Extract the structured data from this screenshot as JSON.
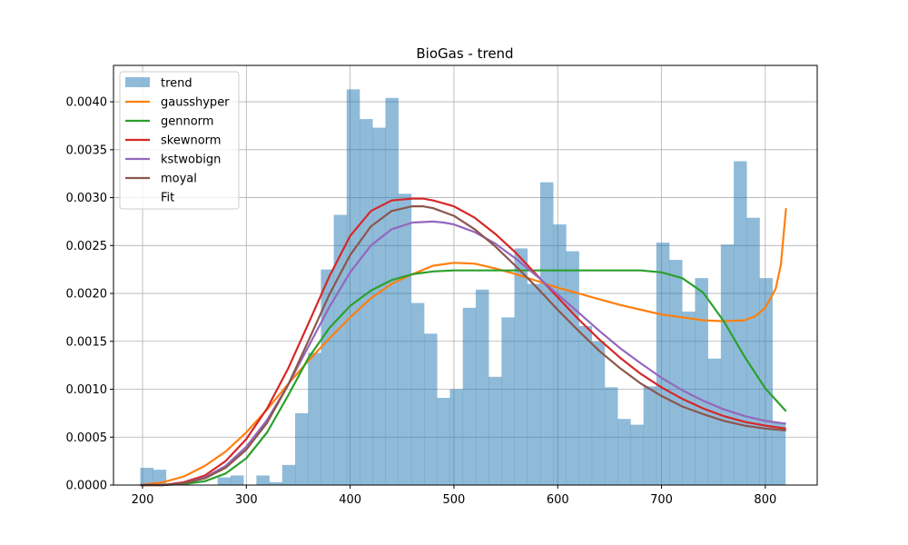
{
  "chart_data": {
    "type": "histogram",
    "title": "BioGas - trend",
    "xlabel": "",
    "ylabel": "",
    "xlim": [
      172,
      850
    ],
    "ylim": [
      0,
      0.00438
    ],
    "grid": true,
    "legend_placement": "top-left",
    "x_ticks": [
      200,
      300,
      400,
      500,
      600,
      700,
      800
    ],
    "y_ticks": [
      0.0,
      0.0005,
      0.001,
      0.0015,
      0.002,
      0.0025,
      0.003,
      0.0035,
      0.004
    ],
    "y_tick_labels": [
      "0.0000",
      "0.0005",
      "0.0010",
      "0.0015",
      "0.0020",
      "0.0025",
      "0.0030",
      "0.0035",
      "0.0040"
    ],
    "x_tick_labels": [
      "200",
      "300",
      "400",
      "500",
      "600",
      "700",
      "800"
    ],
    "histogram": {
      "name": "trend",
      "color": "#1f77b4",
      "alpha": 0.5,
      "bin_start": 197.8,
      "bin_width": 12.43,
      "values": [
        0.00018,
        0.00016,
        0.0,
        0.0,
        0.0,
        0.0,
        8e-05,
        0.0001,
        0.0,
        0.0001,
        3e-05,
        0.00021,
        0.00075,
        0.00138,
        0.00225,
        0.00282,
        0.00413,
        0.00382,
        0.00373,
        0.00404,
        0.00304,
        0.0019,
        0.00158,
        0.00091,
        0.001,
        0.00185,
        0.00204,
        0.00113,
        0.00175,
        0.00247,
        0.0021,
        0.00316,
        0.00272,
        0.00244,
        0.00166,
        0.0015,
        0.00102,
        0.00069,
        0.00063,
        0.00103,
        0.00253,
        0.00235,
        0.00181,
        0.00216,
        0.00132,
        0.00251,
        0.00338,
        0.00279,
        0.00216,
        0.00065
      ]
    },
    "series": [
      {
        "name": "gausshyper",
        "color": "#ff7f0e",
        "x": [
          198,
          220,
          240,
          260,
          280,
          300,
          320,
          340,
          360,
          380,
          400,
          420,
          440,
          460,
          480,
          500,
          520,
          540,
          560,
          580,
          600,
          620,
          640,
          660,
          680,
          700,
          720,
          740,
          760,
          780,
          790,
          800,
          810,
          815,
          820
        ],
        "y": [
          0.0,
          3e-05,
          9e-05,
          0.0002,
          0.00035,
          0.00055,
          0.00079,
          0.00105,
          0.0013,
          0.00153,
          0.00175,
          0.00195,
          0.0021,
          0.0022,
          0.00229,
          0.00232,
          0.00231,
          0.00226,
          0.0022,
          0.00213,
          0.00206,
          0.002,
          0.00194,
          0.00188,
          0.00183,
          0.00178,
          0.00175,
          0.00172,
          0.00171,
          0.00172,
          0.00176,
          0.00185,
          0.00205,
          0.0023,
          0.00289
        ]
      },
      {
        "name": "gennorm",
        "color": "#2ca02c",
        "x": [
          198,
          220,
          240,
          260,
          280,
          300,
          320,
          340,
          360,
          380,
          400,
          420,
          440,
          460,
          480,
          500,
          520,
          540,
          560,
          580,
          600,
          620,
          640,
          660,
          680,
          700,
          720,
          740,
          760,
          780,
          800,
          820
        ],
        "y": [
          0.0,
          0.0,
          1e-05,
          4e-05,
          0.00012,
          0.00028,
          0.00055,
          0.00093,
          0.00133,
          0.00164,
          0.00187,
          0.00203,
          0.00214,
          0.0022,
          0.00223,
          0.00224,
          0.00224,
          0.00224,
          0.00224,
          0.00224,
          0.00224,
          0.00224,
          0.00224,
          0.00224,
          0.00224,
          0.00222,
          0.00216,
          0.00201,
          0.00171,
          0.00134,
          0.00101,
          0.00077
        ]
      },
      {
        "name": "skewnorm",
        "color": "#d62728",
        "x": [
          198,
          220,
          240,
          260,
          280,
          300,
          320,
          340,
          360,
          380,
          400,
          420,
          440,
          460,
          470,
          480,
          500,
          520,
          540,
          560,
          580,
          600,
          620,
          640,
          660,
          680,
          700,
          720,
          740,
          760,
          780,
          800,
          820
        ],
        "y": [
          0.0,
          0.0,
          3e-05,
          0.0001,
          0.00025,
          0.00048,
          0.0008,
          0.00121,
          0.00169,
          0.00218,
          0.0026,
          0.00286,
          0.00297,
          0.00299,
          0.00299,
          0.00297,
          0.00291,
          0.00279,
          0.00262,
          0.00242,
          0.00219,
          0.00196,
          0.00173,
          0.00152,
          0.00133,
          0.00116,
          0.00102,
          0.0009,
          0.0008,
          0.00072,
          0.00066,
          0.00062,
          0.00059
        ]
      },
      {
        "name": "kstwobign",
        "color": "#9467bd",
        "x": [
          198,
          220,
          240,
          260,
          280,
          300,
          320,
          340,
          360,
          380,
          400,
          420,
          440,
          460,
          480,
          490,
          500,
          520,
          540,
          560,
          580,
          600,
          620,
          640,
          660,
          680,
          700,
          720,
          740,
          760,
          780,
          800,
          820
        ],
        "y": [
          0.0,
          0.0,
          2e-05,
          8e-05,
          0.0002,
          0.0004,
          0.00068,
          0.00104,
          0.00145,
          0.00186,
          0.00222,
          0.0025,
          0.00267,
          0.00274,
          0.00275,
          0.00274,
          0.00272,
          0.00264,
          0.00252,
          0.00236,
          0.00218,
          0.00199,
          0.0018,
          0.00161,
          0.00143,
          0.00127,
          0.00112,
          0.00099,
          0.00088,
          0.00079,
          0.00072,
          0.00067,
          0.00064
        ]
      },
      {
        "name": "moyal",
        "color": "#8c564b",
        "x": [
          198,
          220,
          240,
          260,
          280,
          300,
          320,
          340,
          360,
          380,
          400,
          420,
          440,
          460,
          470,
          480,
          500,
          520,
          540,
          560,
          580,
          600,
          620,
          640,
          660,
          680,
          700,
          720,
          740,
          760,
          780,
          800,
          820
        ],
        "y": [
          0.0,
          0.0,
          2e-05,
          7e-05,
          0.00018,
          0.00037,
          0.00065,
          0.00104,
          0.00151,
          0.00199,
          0.0024,
          0.0027,
          0.00286,
          0.00291,
          0.00291,
          0.00289,
          0.00281,
          0.00267,
          0.00249,
          0.00228,
          0.00206,
          0.00183,
          0.00161,
          0.0014,
          0.00122,
          0.00106,
          0.00093,
          0.00082,
          0.00074,
          0.00067,
          0.00062,
          0.00059,
          0.00057
        ]
      }
    ],
    "legend": [
      "trend",
      "gausshyper",
      "gennorm",
      "skewnorm",
      "kstwobign",
      "moyal",
      "Fit"
    ]
  }
}
